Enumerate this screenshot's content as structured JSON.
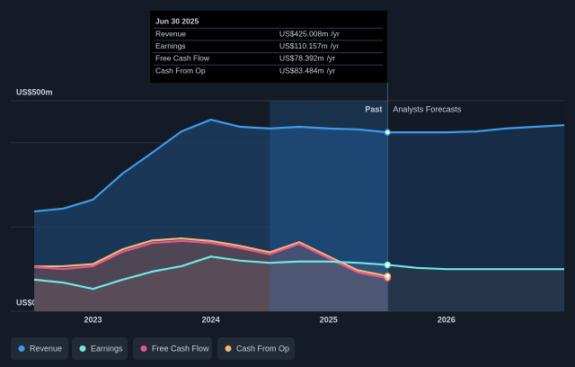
{
  "chart_data": {
    "type": "area",
    "x": [
      2022.5,
      2022.75,
      2023,
      2023.25,
      2023.5,
      2023.75,
      2024,
      2024.25,
      2024.5,
      2024.75,
      2025,
      2025.25,
      2025.5,
      2025.75,
      2026,
      2026.25,
      2026.5,
      2026.75,
      2027
    ],
    "xlim": [
      2022.5,
      2027
    ],
    "xticks": [
      2023,
      2024,
      2025,
      2026
    ],
    "ylim": [
      0,
      500
    ],
    "yticks": [
      {
        "value": 0,
        "label": "US$0"
      },
      {
        "value": 200,
        "label": null
      },
      {
        "value": 400,
        "label": null
      },
      {
        "value": 500,
        "label": "US$500m"
      }
    ],
    "grid": true,
    "divider_x": 2025.5,
    "highlight_from": 2024.5,
    "past_label": "Past",
    "forecast_label": "Analysts Forecasts",
    "series": [
      {
        "name": "Revenue",
        "color": "#3d9be9",
        "values": [
          237,
          244,
          265,
          327,
          376,
          427,
          455,
          438,
          434,
          438,
          434,
          432,
          425.008,
          425,
          425,
          427,
          434,
          438,
          442
        ],
        "tooltip": {
          "value": 425.008,
          "label": "US$425.008m"
        }
      },
      {
        "name": "Earnings",
        "color": "#6ee7e3",
        "values": [
          75,
          68,
          53,
          75,
          94,
          107,
          130,
          120,
          115,
          118,
          118,
          115,
          110.157,
          103,
          100,
          100,
          100,
          100,
          100
        ],
        "tooltip": {
          "value": 110.157,
          "label": "US$110.157m"
        }
      },
      {
        "name": "Free Cash Flow",
        "color": "#e4568f",
        "values": [
          105,
          100,
          107,
          141,
          162,
          167,
          162,
          150,
          135,
          160,
          126,
          92,
          78.392,
          null,
          null,
          null,
          null,
          null,
          null
        ],
        "tooltip": {
          "value": 78.392,
          "label": "US$78.392m"
        }
      },
      {
        "name": "Cash From Op",
        "color": "#f2b872",
        "values": [
          106,
          107,
          112,
          147,
          168,
          173,
          167,
          155,
          140,
          164,
          130,
          97,
          83.484,
          null,
          null,
          null,
          null,
          null,
          null
        ],
        "tooltip": {
          "value": 83.484,
          "label": "US$83.484m"
        }
      }
    ],
    "tooltip": {
      "date": "Jun 30 2025",
      "unit": "/yr"
    }
  }
}
